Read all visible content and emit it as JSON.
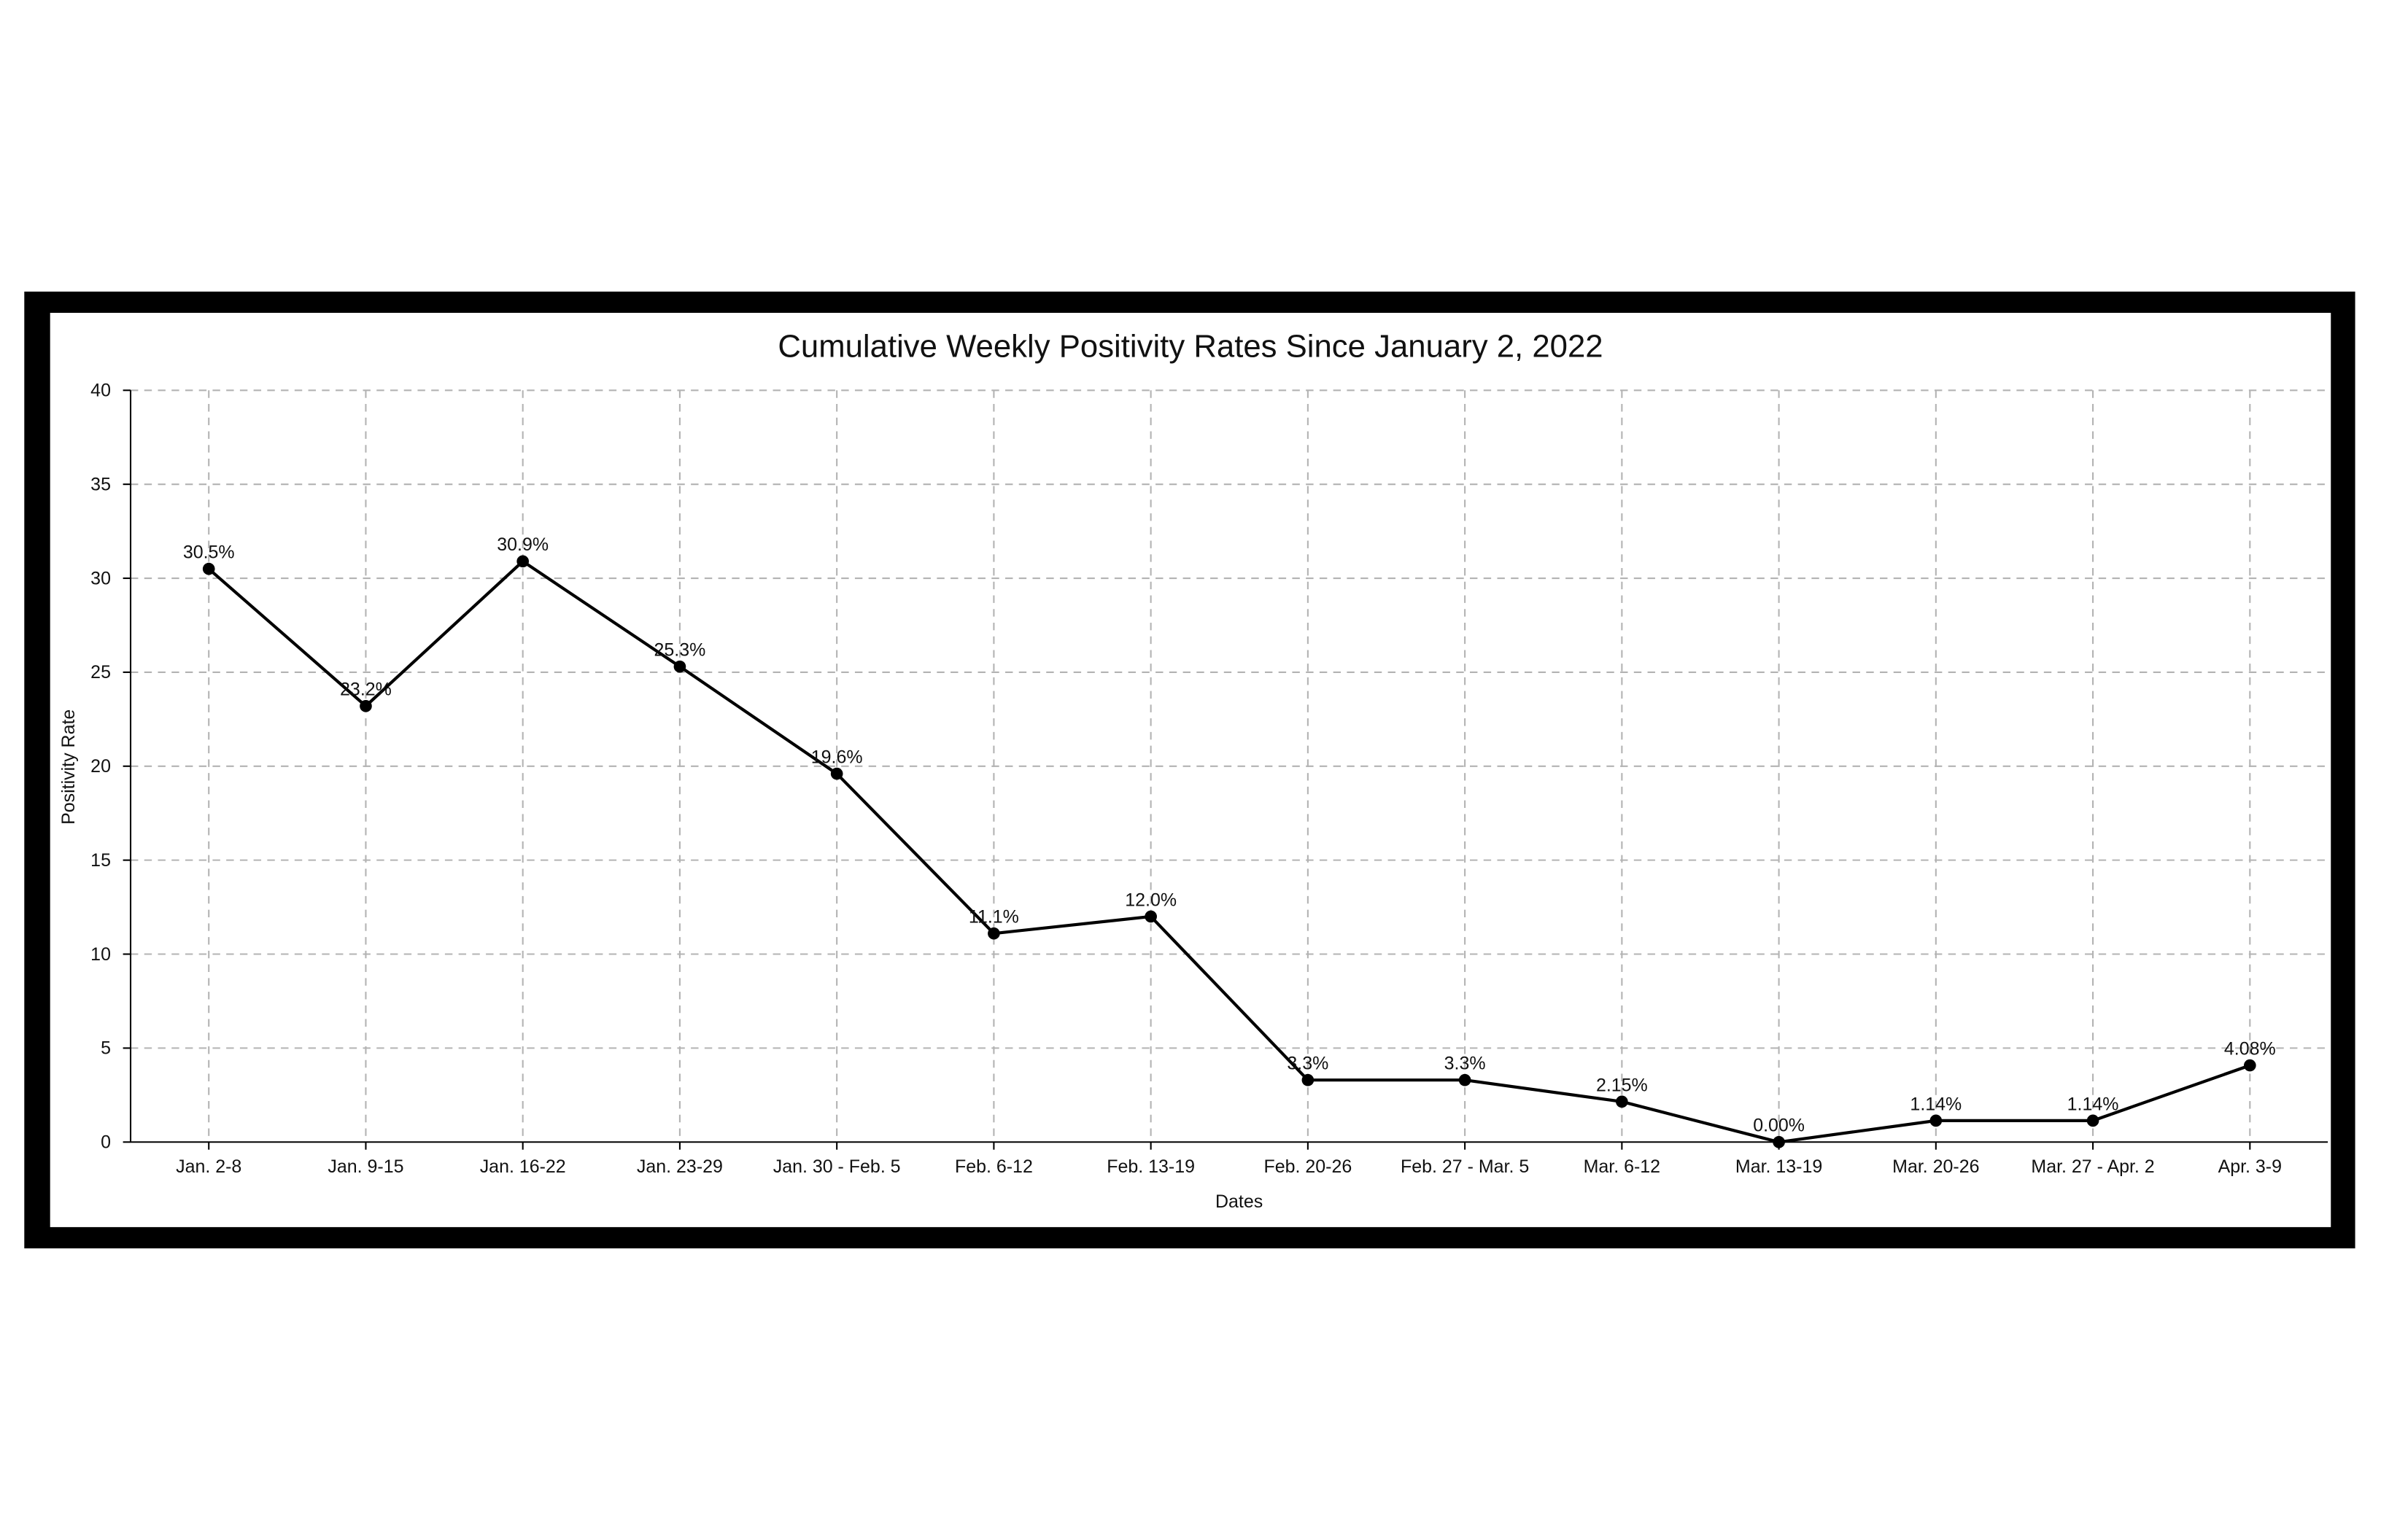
{
  "chart_data": {
    "type": "line",
    "title": "Cumulative Weekly Positivity Rates Since January 2, 2022",
    "xlabel": "Dates",
    "ylabel": "Positivity Rate",
    "ylim": [
      0,
      40
    ],
    "yticks": [
      0,
      5,
      10,
      15,
      20,
      25,
      30,
      35,
      40
    ],
    "grid": true,
    "categories": [
      "Jan. 2-8",
      "Jan. 9-15",
      "Jan. 16-22",
      "Jan. 23-29",
      "Jan. 30 - Feb. 5",
      "Feb. 6-12",
      "Feb. 13-19",
      "Feb. 20-26",
      "Feb. 27 - Mar. 5",
      "Mar. 6-12",
      "Mar. 13-19",
      "Mar. 20-26",
      "Mar. 27 - Apr. 2",
      "Apr. 3-9"
    ],
    "values": [
      30.5,
      23.2,
      30.9,
      25.3,
      19.6,
      11.1,
      12.0,
      3.3,
      3.3,
      2.15,
      0.0,
      1.14,
      1.14,
      4.08
    ],
    "data_labels": [
      "30.5%",
      "23.2%",
      "30.9%",
      "25.3%",
      "19.6%",
      "11.1%",
      "12.0%",
      "3.3%",
      "3.3%",
      "2.15%",
      "0.00%",
      "1.14%",
      "1.14%",
      "4.08%"
    ],
    "line_color": "#000000",
    "grid_color": "#b3b3b3"
  }
}
